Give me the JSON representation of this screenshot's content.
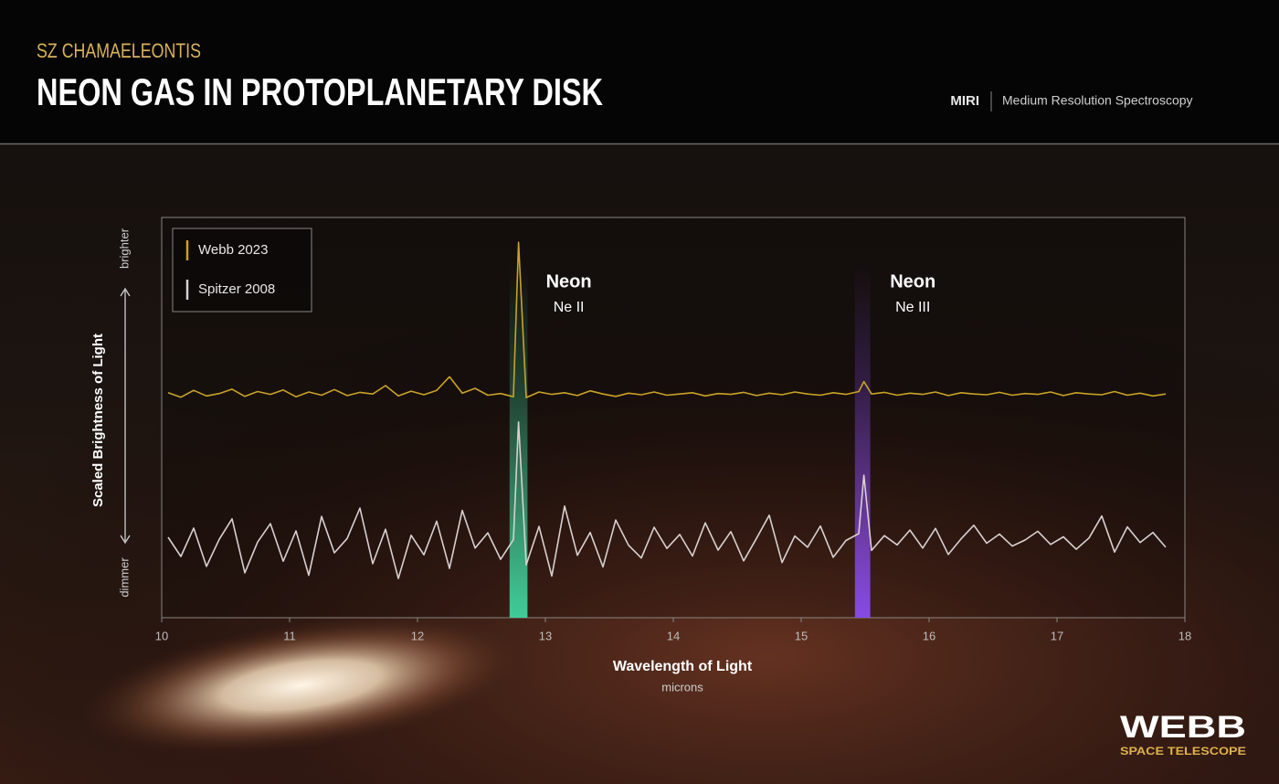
{
  "chart_data": {
    "type": "line",
    "subtitle": "SZ CHAMAELEONTIS",
    "title": "NEON GAS IN PROTOPLANETARY DISK",
    "instrument": "MIRI",
    "mode": "Medium Resolution Spectroscopy",
    "x_label": "Wavelength of Light",
    "x_unit": "microns",
    "y_label": "Scaled Brightness of Light",
    "y_high": "brighter",
    "y_low": "dimmer",
    "xlim": [
      10,
      18
    ],
    "xticks": [
      10,
      11,
      12,
      13,
      14,
      15,
      16,
      17,
      18
    ],
    "ylim": [
      0,
      100
    ],
    "legend": "upper left",
    "x": [
      10.05,
      10.15,
      10.25,
      10.35,
      10.45,
      10.55,
      10.65,
      10.75,
      10.85,
      10.95,
      11.05,
      11.15,
      11.25,
      11.35,
      11.45,
      11.55,
      11.65,
      11.75,
      11.85,
      11.95,
      12.05,
      12.15,
      12.25,
      12.35,
      12.45,
      12.55,
      12.65,
      12.75,
      12.79,
      12.85,
      12.95,
      13.05,
      13.15,
      13.25,
      13.35,
      13.45,
      13.55,
      13.65,
      13.75,
      13.85,
      13.95,
      14.05,
      14.15,
      14.25,
      14.35,
      14.45,
      14.55,
      14.65,
      14.75,
      14.85,
      14.95,
      15.05,
      15.15,
      15.25,
      15.35,
      15.45,
      15.49,
      15.55,
      15.65,
      15.75,
      15.85,
      15.95,
      16.05,
      16.15,
      16.25,
      16.35,
      16.45,
      16.55,
      16.65,
      16.75,
      16.85,
      16.95,
      17.05,
      17.15,
      17.25,
      17.35,
      17.45,
      17.55,
      17.65,
      17.75,
      17.85
    ],
    "series": [
      {
        "name": "Webb 2023",
        "color": "#c9a227",
        "values": [
          56.2,
          55.1,
          56.8,
          55.4,
          56.0,
          57.1,
          55.3,
          56.5,
          55.8,
          56.9,
          55.2,
          56.4,
          55.6,
          57.0,
          55.5,
          56.3,
          55.9,
          58.0,
          55.4,
          56.6,
          55.7,
          56.8,
          60.2,
          56.1,
          57.3,
          55.6,
          56.0,
          55.2,
          93.8,
          55.0,
          56.4,
          55.8,
          56.2,
          55.5,
          56.7,
          55.9,
          55.3,
          56.1,
          55.7,
          56.4,
          55.6,
          55.9,
          56.2,
          55.4,
          56.0,
          55.8,
          56.3,
          55.5,
          56.1,
          55.7,
          56.4,
          55.9,
          55.6,
          56.2,
          55.8,
          56.5,
          59.0,
          55.9,
          56.3,
          55.6,
          56.1,
          55.8,
          56.4,
          55.5,
          56.2,
          55.9,
          55.7,
          56.3,
          55.6,
          56.0,
          55.8,
          56.4,
          55.5,
          56.2,
          55.9,
          55.7,
          56.5,
          55.6,
          56.1,
          55.4,
          55.9
        ]
      },
      {
        "name": "Spitzer 2008",
        "color": "#d8d0d0",
        "values": [
          20.1,
          15.3,
          22.4,
          12.8,
          19.6,
          24.7,
          11.2,
          18.9,
          23.5,
          14.1,
          21.7,
          10.6,
          25.3,
          16.2,
          19.8,
          27.4,
          13.5,
          22.1,
          9.8,
          20.6,
          15.7,
          24.1,
          12.3,
          26.8,
          17.4,
          21.2,
          14.6,
          19.5,
          48.9,
          13.2,
          22.8,
          10.4,
          27.9,
          15.6,
          21.3,
          12.7,
          24.4,
          18.1,
          14.9,
          22.6,
          17.3,
          20.8,
          15.4,
          23.7,
          16.9,
          21.5,
          14.2,
          19.8,
          25.6,
          13.8,
          20.4,
          17.6,
          22.9,
          15.1,
          19.3,
          21.0,
          35.6,
          16.8,
          20.5,
          18.2,
          21.9,
          17.4,
          22.3,
          15.8,
          19.7,
          23.1,
          18.6,
          20.9,
          17.9,
          19.4,
          21.6,
          18.3,
          20.2,
          17.1,
          19.9,
          25.4,
          16.4,
          22.7,
          18.8,
          21.3,
          17.6
        ]
      }
    ],
    "highlights": [
      {
        "label": "Neon",
        "sublabel": "Ne II",
        "xrange": [
          12.72,
          12.86
        ],
        "color": "#3fd6a0"
      },
      {
        "label": "Neon",
        "sublabel": "Ne III",
        "xrange": [
          15.42,
          15.54
        ],
        "color": "#8a4cf0"
      }
    ]
  },
  "branding": {
    "name": "WEBB",
    "tagline": "SPACE TELESCOPE"
  }
}
